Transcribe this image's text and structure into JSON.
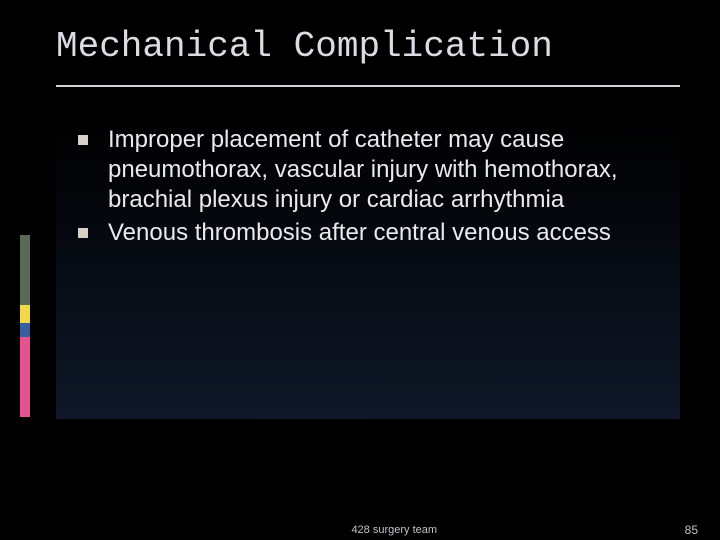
{
  "slide": {
    "title": "Mechanical Complication",
    "title_font": "Consolas",
    "title_fontsize": 36,
    "title_color": "#d9dde2",
    "title_rule_color": "#cfd3d8",
    "bullets": [
      "Improper placement of catheter may cause pneumothorax, vascular injury with hemothorax, brachial plexus injury or cardiac arrhythmia",
      "Venous thrombosis after central venous access"
    ],
    "bullet_marker_shape": "square",
    "bullet_marker_color": "#d8d0c6",
    "body_fontsize": 24,
    "body_color": "#e8eaed",
    "background_color": "#000000",
    "content_gradient": {
      "from": "rgba(10,14,24,0)",
      "mid": "rgba(15,25,45,0.35)",
      "to": "rgba(28,44,74,0.55)"
    }
  },
  "color_strip": {
    "segments": [
      {
        "color": "#5a6a56",
        "height": 70
      },
      {
        "color": "#f3d94a",
        "height": 18
      },
      {
        "color": "#3a5fa0",
        "height": 14
      },
      {
        "color": "#e6518f",
        "height": 80
      }
    ]
  },
  "footer": {
    "text": "428 surgery team",
    "page_number": "85",
    "color": "#bfc3c8",
    "fontsize": 11
  }
}
